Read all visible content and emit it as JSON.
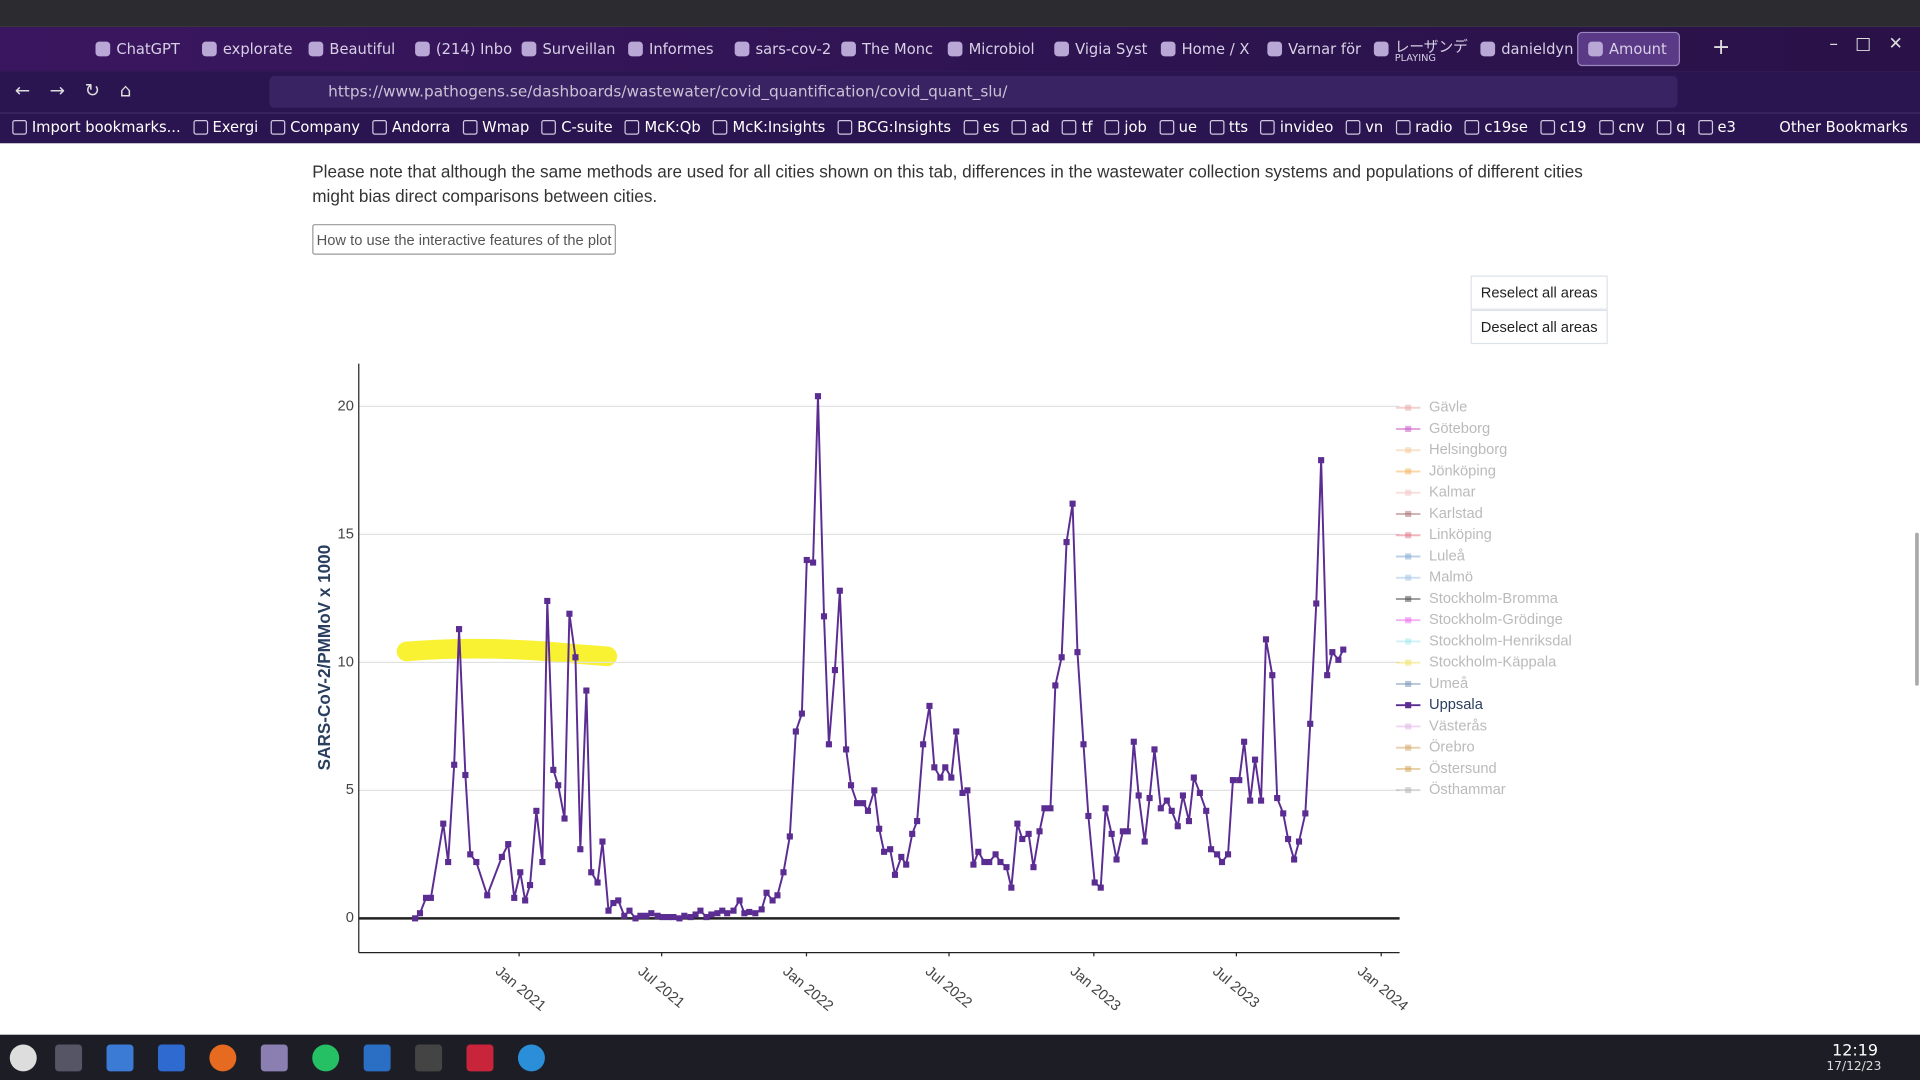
{
  "browser": {
    "tabs": [
      "ChatGPT",
      "explorate",
      "Beautiful",
      "(214) Inbo",
      "Surveillan",
      "Informes",
      "sars-cov-2",
      "The Monc",
      "Microbiol",
      "Vigia Syst",
      "Home / X",
      "Varnar för",
      "レーザンデ",
      "danieldyn",
      "Amount"
    ],
    "playing": "PLAYING",
    "url": "https://www.pathogens.se/dashboards/wastewater/covid_quantification/covid_quant_slu/",
    "bookmarks": [
      "Import bookmarks...",
      "Exergi",
      "Company",
      "Andorra",
      "Wmap",
      "C-suite",
      "McK:Qb",
      "McK:Insights",
      "BCG:Insights",
      "es",
      "ad",
      "tf",
      "job",
      "ue",
      "tts",
      "invideo",
      "vn",
      "radio",
      "c19se",
      "c19",
      "cnv",
      "q",
      "e3"
    ],
    "other_bookmarks": "Other Bookmarks"
  },
  "page": {
    "note": "Please note that although the same methods are used for all cities shown on this tab, differences in the wastewater collection systems and populations of different cities might bias direct comparisons between cities.",
    "help_button": "How to use the interactive features of the plot",
    "reselect": "Reselect all areas",
    "deselect": "Deselect all areas"
  },
  "chart_data": {
    "type": "line",
    "y_label": "SARS-CoV-2/PMMoV x 1000",
    "xlim": [
      2020.442,
      2024.064
    ],
    "xticks": [
      {
        "value": 2021,
        "label": "Jan 2021"
      },
      {
        "value": 2021.496,
        "label": "Jul 2021"
      },
      {
        "value": 2022,
        "label": "Jan 2022"
      },
      {
        "value": 2022.496,
        "label": "Jul 2022"
      },
      {
        "value": 2023,
        "label": "Jan 2023"
      },
      {
        "value": 2023.496,
        "label": "Jul 2023"
      },
      {
        "value": 2024,
        "label": "Jan 2024"
      }
    ],
    "ylim": [
      -1.34,
      21.67
    ],
    "yticks": [
      0,
      5,
      10,
      15,
      20
    ],
    "grid": true,
    "series": [
      {
        "name": "Gävle",
        "color": "#e9a3a3",
        "visible": false
      },
      {
        "name": "Göteborg",
        "color": "#c84fc8",
        "visible": false
      },
      {
        "name": "Helsingborg",
        "color": "#f3c89c",
        "visible": false
      },
      {
        "name": "Jönköping",
        "color": "#f2b25a",
        "visible": false
      },
      {
        "name": "Kalmar",
        "color": "#f2c2c2",
        "visible": false
      },
      {
        "name": "Karlstad",
        "color": "#a86a6a",
        "visible": false
      },
      {
        "name": "Linköping",
        "color": "#df6f82",
        "visible": false
      },
      {
        "name": "Luleå",
        "color": "#7aa4cf",
        "visible": false
      },
      {
        "name": "Malmö",
        "color": "#9dc4e6",
        "visible": false
      },
      {
        "name": "Stockholm-Bromma",
        "color": "#444444",
        "visible": false
      },
      {
        "name": "Stockholm-Grödinge",
        "color": "#ee62ee",
        "visible": false
      },
      {
        "name": "Stockholm-Henriksdal",
        "color": "#9fe6ef",
        "visible": false
      },
      {
        "name": "Stockholm-Käppala",
        "color": "#efe05c",
        "visible": false
      },
      {
        "name": "Umeå",
        "color": "#6d8db0",
        "visible": false
      },
      {
        "name": "Uppsala",
        "color": "#5b2d92",
        "visible": true,
        "x": [
          2020.638,
          2020.655,
          2020.676,
          2020.693,
          2020.736,
          2020.753,
          2020.774,
          2020.791,
          2020.813,
          2020.83,
          2020.851,
          2020.889,
          2020.94,
          2020.962,
          2020.983,
          2021.004,
          2021.021,
          2021.038,
          2021.06,
          2021.081,
          2021.098,
          2021.119,
          2021.136,
          2021.158,
          2021.175,
          2021.196,
          2021.213,
          2021.234,
          2021.251,
          2021.273,
          2021.29,
          2021.311,
          2021.328,
          2021.345,
          2021.366,
          2021.384,
          2021.405,
          2021.422,
          2021.443,
          2021.46,
          2021.482,
          2021.499,
          2021.52,
          2021.537,
          2021.558,
          2021.575,
          2021.597,
          2021.614,
          2021.631,
          2021.652,
          2021.669,
          2021.69,
          2021.707,
          2021.724,
          2021.746,
          2021.767,
          2021.784,
          2021.801,
          2021.822,
          2021.844,
          2021.861,
          2021.882,
          2021.899,
          2021.92,
          2021.942,
          2021.963,
          2021.984,
          2022.001,
          2022.023,
          2022.04,
          2022.061,
          2022.078,
          2022.099,
          2022.116,
          2022.138,
          2022.155,
          2022.176,
          2022.197,
          2022.214,
          2022.236,
          2022.253,
          2022.27,
          2022.291,
          2022.308,
          2022.33,
          2022.347,
          2022.368,
          2022.385,
          2022.406,
          2022.428,
          2022.445,
          2022.466,
          2022.483,
          2022.504,
          2022.521,
          2022.543,
          2022.56,
          2022.581,
          2022.598,
          2022.619,
          2022.636,
          2022.658,
          2022.675,
          2022.696,
          2022.713,
          2022.734,
          2022.751,
          2022.773,
          2022.79,
          2022.811,
          2022.828,
          2022.849,
          2022.866,
          2022.888,
          2022.905,
          2022.926,
          2022.943,
          2022.964,
          2022.981,
          2023.003,
          2023.024,
          2023.041,
          2023.062,
          2023.079,
          2023.101,
          2023.118,
          2023.139,
          2023.156,
          2023.177,
          2023.194,
          2023.211,
          2023.233,
          2023.254,
          2023.271,
          2023.292,
          2023.31,
          2023.331,
          2023.348,
          2023.369,
          2023.391,
          2023.408,
          2023.429,
          2023.446,
          2023.467,
          2023.484,
          2023.506,
          2023.523,
          2023.544,
          2023.561,
          2023.582,
          2023.599,
          2023.621,
          2023.638,
          2023.659,
          2023.676,
          2023.697,
          2023.714,
          2023.736,
          2023.753,
          2023.774,
          2023.791,
          2023.812,
          2023.83,
          2023.851,
          2023.868
        ],
        "values": [
          0.0,
          0.2,
          0.8,
          0.8,
          3.7,
          2.2,
          6.0,
          11.3,
          5.6,
          2.5,
          2.2,
          0.9,
          2.4,
          2.9,
          0.8,
          1.8,
          0.7,
          1.3,
          4.2,
          2.2,
          12.4,
          5.8,
          5.2,
          3.9,
          11.9,
          10.2,
          2.7,
          8.9,
          1.8,
          1.4,
          3.0,
          0.3,
          0.6,
          0.7,
          0.1,
          0.3,
          0.0,
          0.1,
          0.1,
          0.2,
          0.1,
          0.05,
          0.05,
          0.05,
          0.0,
          0.1,
          0.05,
          0.15,
          0.3,
          0.05,
          0.15,
          0.2,
          0.3,
          0.2,
          0.3,
          0.7,
          0.2,
          0.25,
          0.2,
          0.35,
          1.0,
          0.7,
          0.9,
          1.8,
          3.2,
          7.3,
          8.0,
          14.0,
          13.9,
          20.4,
          11.8,
          6.8,
          9.7,
          12.8,
          6.6,
          5.2,
          4.5,
          4.5,
          4.2,
          5.0,
          3.5,
          2.6,
          2.7,
          1.7,
          2.4,
          2.1,
          3.3,
          3.8,
          6.8,
          8.3,
          5.9,
          5.5,
          5.9,
          5.5,
          7.3,
          4.9,
          5.0,
          2.1,
          2.6,
          2.2,
          2.2,
          2.5,
          2.2,
          2.0,
          1.2,
          3.7,
          3.1,
          3.3,
          2.0,
          3.4,
          4.3,
          4.3,
          9.1,
          10.2,
          14.7,
          16.2,
          10.4,
          6.8,
          4.0,
          1.4,
          1.2,
          4.3,
          3.3,
          2.3,
          3.4,
          3.4,
          6.9,
          4.8,
          3.0,
          4.7,
          6.6,
          4.3,
          4.6,
          4.2,
          3.6,
          4.8,
          3.8,
          5.5,
          4.9,
          4.2,
          2.7,
          2.5,
          2.2,
          2.5,
          5.4,
          5.4,
          6.9,
          4.6,
          6.2,
          4.6,
          10.9,
          9.5,
          4.7,
          4.1,
          3.1,
          2.3,
          3.0,
          4.1,
          7.6,
          12.3,
          17.9,
          9.5,
          10.4,
          10.1,
          10.5
        ]
      },
      {
        "name": "Västerås",
        "color": "#dfb0e8",
        "visible": false
      },
      {
        "name": "Örebro",
        "color": "#d19f5e",
        "visible": false
      },
      {
        "name": "Östersund",
        "color": "#cfa04e",
        "visible": false
      },
      {
        "name": "Östhammar",
        "color": "#b0b0b0",
        "visible": false
      }
    ]
  },
  "taskbar": {
    "time": "12:19",
    "date": "17/12/23"
  }
}
